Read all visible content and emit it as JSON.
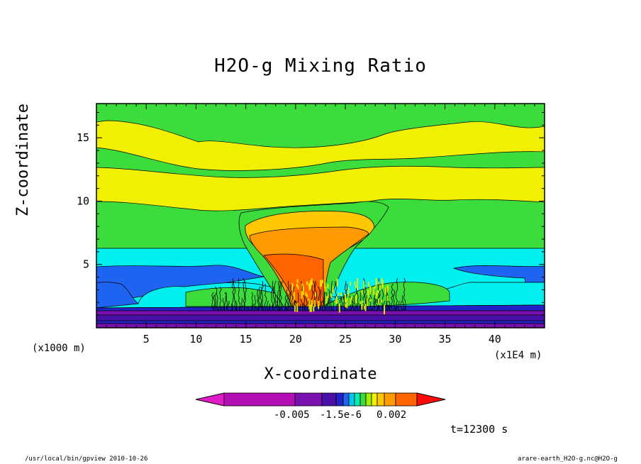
{
  "chart_data": {
    "type": "heatmap",
    "title": "H2O-g Mixing Ratio",
    "xlabel": "X-coordinate",
    "ylabel": "Z-coordinate",
    "x_unit_left": "(x1000 m)",
    "x_unit_right": "(x1E4 m)",
    "xlim": [
      0,
      45
    ],
    "ylim": [
      0,
      17.7
    ],
    "x_ticks": [
      5,
      10,
      15,
      20,
      25,
      30,
      35,
      40
    ],
    "y_ticks": [
      5,
      10,
      15
    ],
    "colorbar": {
      "colors": [
        "#e01cc8",
        "#b40fb4",
        "#7a10b0",
        "#4a10a8",
        "#2222c8",
        "#1e64f0",
        "#00c8f0",
        "#00f0b4",
        "#3cdc3c",
        "#a0f000",
        "#f0f000",
        "#ffc800",
        "#ff9a00",
        "#ff6400",
        "#ff0a0a"
      ],
      "tick_labels": [
        "-0.005",
        "-1.5e-6",
        "0.002"
      ]
    },
    "time_label": "t=12300 s",
    "contour_colors": {
      "purple_dark": "#4a10a8",
      "purple": "#7a10b0",
      "blue_dark": "#2222c8",
      "blue": "#1e64f0",
      "cyan": "#00f0f0",
      "green": "#3cdc3c",
      "yellow": "#f0f000",
      "orange_light": "#ffc800",
      "orange": "#ff9a00",
      "orange_dark": "#ff6400"
    }
  },
  "footer": {
    "left": "/usr/local/bin/gpview  2010-10-26",
    "right": "arare-earth_H2O-g.nc@H2O-g"
  }
}
